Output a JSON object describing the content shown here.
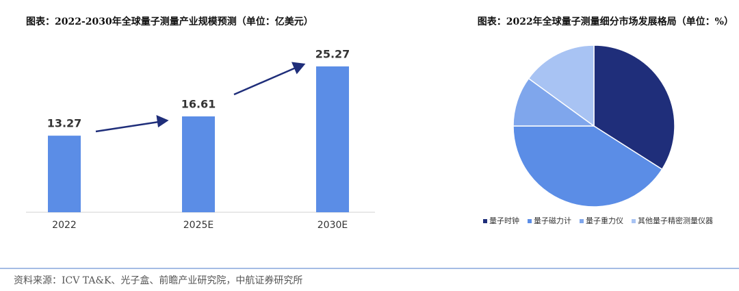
{
  "chart_data": [
    {
      "type": "bar",
      "title": "图表：2022-2030年全球量子测量产业规模预测（单位：亿美元）",
      "categories": [
        "2022",
        "2025E",
        "2030E"
      ],
      "values": [
        13.27,
        16.61,
        25.27
      ],
      "color": "#5b8de6"
    },
    {
      "type": "pie",
      "title": "图表：2022年全球量子测量细分市场发展格局（单位：%）",
      "categories": [
        "量子时钟",
        "量子磁力计",
        "量子重力仪",
        "其他量子精密测量仪器"
      ],
      "values": [
        34,
        41,
        10,
        15
      ],
      "colors": [
        "#1f2e7a",
        "#5b8de6",
        "#7fa6ec",
        "#a8c3f3"
      ],
      "legend": "bottom"
    }
  ],
  "source": "资料来源：ICV TA&K、光子盒、前瞻产业研究院，中航证券研究所"
}
